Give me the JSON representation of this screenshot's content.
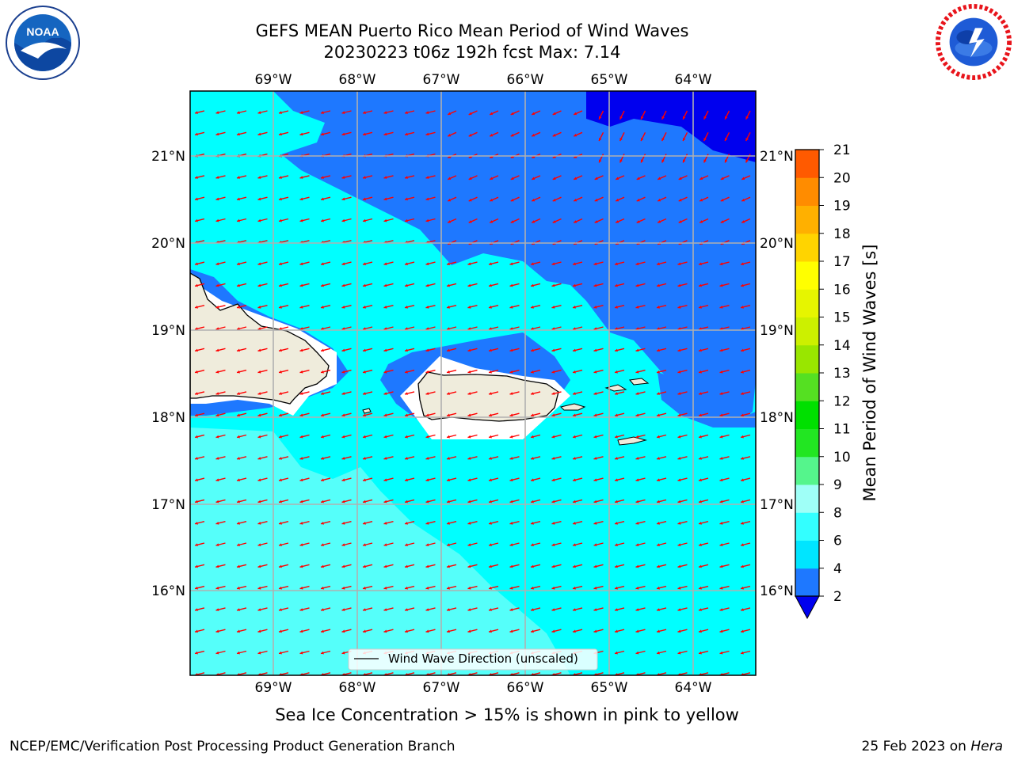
{
  "header": {
    "title_line1": "GEFS MEAN Puerto Rico Mean Period of Wind Waves",
    "title_line2": "20230223 t06z 192h fcst   Max: 7.14"
  },
  "logos": {
    "left": "noaa-logo",
    "right": "national-weather-service-logo"
  },
  "map": {
    "lon_labels": [
      "69°W",
      "68°W",
      "67°W",
      "66°W",
      "65°W",
      "64°W"
    ],
    "lat_labels": [
      "21°N",
      "20°N",
      "19°N",
      "18°N",
      "17°N",
      "16°N"
    ],
    "legend_label": "Wind Wave Direction (unscaled)",
    "arrow_color": "#ff0000",
    "land_color": "#efecdc",
    "grid": true
  },
  "colorbar": {
    "title": "Mean Period of Wind Waves [s]",
    "tick_labels": [
      "2",
      "4",
      "6",
      "8",
      "9",
      "10",
      "11",
      "12",
      "13",
      "14",
      "15",
      "16",
      "17",
      "18",
      "19",
      "20",
      "21"
    ],
    "colors": [
      "#1e78ff",
      "#00e5ff",
      "#33ffff",
      "#9ffff7",
      "#55f58c",
      "#22e622",
      "#00e000",
      "#55e022",
      "#99e600",
      "#ccf000",
      "#e6f500",
      "#ffff00",
      "#ffd400",
      "#ffb000",
      "#ff8c00",
      "#ff5a00",
      "#ff2a00",
      "#ff0000"
    ],
    "under_color": "#0000ee"
  },
  "footer": {
    "ice_note": "Sea Ice Concentration > 15% is shown in pink to yellow",
    "left": "NCEP/EMC/Verification Post Processing Product Generation Branch",
    "date": "25 Feb 2023 on ",
    "machine": "Hera"
  }
}
